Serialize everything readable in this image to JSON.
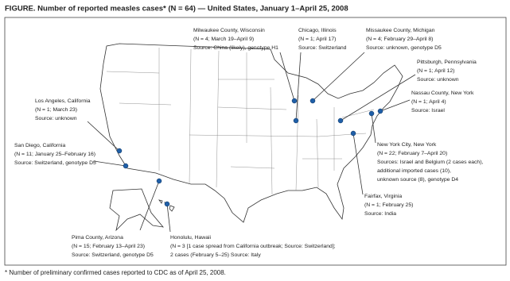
{
  "title": "FIGURE. Number of reported measles cases* (N = 64) — United States, January 1–April 25, 2008",
  "footnote": "* Number of preliminary confirmed cases reported to CDC as of April 25, 2008.",
  "annotations": [
    {
      "lines": [
        "Milwaukee County, Wisconsin",
        "(N = 4; March 19–April 9)",
        "Source: China (likely), genotype H1"
      ]
    },
    {
      "lines": [
        "Chicago, Illinois",
        "(N = 1; April 17)",
        "Source: Switzerland"
      ]
    },
    {
      "lines": [
        "Missaukee County, Michigan",
        "(N = 4; February 29–April 8)",
        "Source: unknown, genotype D5"
      ]
    },
    {
      "lines": [
        "Pittsburgh, Pennsylvania",
        "(N = 1; April 12)",
        "Source: unknown"
      ]
    },
    {
      "lines": [
        "Nassau County, New York",
        "(N = 1; April 4)",
        "Source: Israel"
      ]
    },
    {
      "lines": [
        "New York City, New York",
        "(N = 22; February 7–April 20)",
        "Sources: Israel and Belgium (2 cases each),",
        "additional imported cases (10),",
        "unknown source (8), genotype D4"
      ]
    },
    {
      "lines": [
        "Fairfax, Virginia",
        "(N = 1; February 25)",
        "Source: India"
      ]
    },
    {
      "lines": [
        "Los Angeles, California",
        "(N = 1; March 23)",
        "Source: unknown"
      ]
    },
    {
      "lines": [
        "San Diego, California",
        "(N = 11; January 25–February 16)",
        "Source: Switzerland, genotype D5"
      ]
    },
    {
      "lines": [
        "Pima County, Arizona",
        "(N = 15; February 13–April 23)",
        "Source: Switzerland, genotype D5"
      ]
    },
    {
      "lines": [
        "Honolulu, Hawaii",
        "(N = 3 [1 case spread from California outbreak; Source: Switzerland];",
        "2 cases (February 5–25) Source: Italy"
      ]
    }
  ]
}
